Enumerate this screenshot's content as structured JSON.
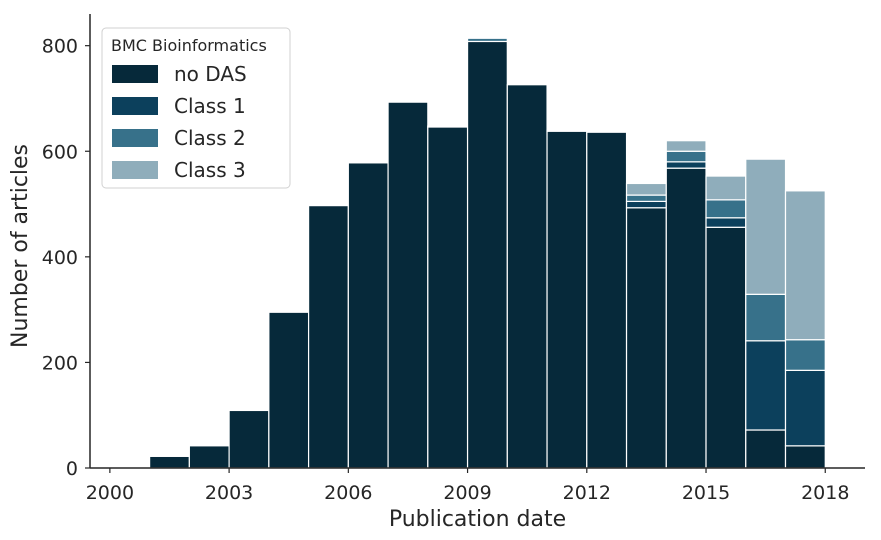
{
  "chart_data": {
    "type": "bar",
    "stacked": true,
    "categories": [
      "2001",
      "2002",
      "2003",
      "2004",
      "2005",
      "2006",
      "2007",
      "2008",
      "2009",
      "2010",
      "2011",
      "2012",
      "2013",
      "2014",
      "2015",
      "2016",
      "2017"
    ],
    "series": [
      {
        "name": "no DAS",
        "color": "#06293a",
        "values": [
          22,
          42,
          109,
          295,
          497,
          578,
          693,
          646,
          808,
          726,
          638,
          636,
          493,
          568,
          456,
          72,
          42
        ]
      },
      {
        "name": "Class 1",
        "color": "#0c405c",
        "values": [
          0,
          0,
          0,
          0,
          0,
          0,
          0,
          0,
          0,
          0,
          0,
          0,
          12,
          12,
          18,
          169,
          143
        ]
      },
      {
        "name": "Class 2",
        "color": "#37718a",
        "values": [
          0,
          0,
          0,
          0,
          0,
          0,
          0,
          0,
          6,
          0,
          0,
          0,
          12,
          20,
          34,
          88,
          58
        ]
      },
      {
        "name": "Class 3",
        "color": "#8fadbb",
        "values": [
          0,
          0,
          0,
          0,
          0,
          0,
          0,
          2,
          0,
          0,
          2,
          0,
          22,
          20,
          45,
          256,
          282
        ]
      }
    ],
    "xlabel": "Publication date",
    "ylabel": "Number of articles",
    "xticks": [
      "2000",
      "2003",
      "2006",
      "2009",
      "2012",
      "2015",
      "2018"
    ],
    "yticks": [
      "0",
      "200",
      "400",
      "600",
      "800"
    ],
    "ylim": [
      0,
      860
    ],
    "xlim": [
      1999.5,
      2019
    ],
    "legend": {
      "title": "BMC Bioinformatics",
      "placement": "top-left"
    },
    "grid": false
  }
}
